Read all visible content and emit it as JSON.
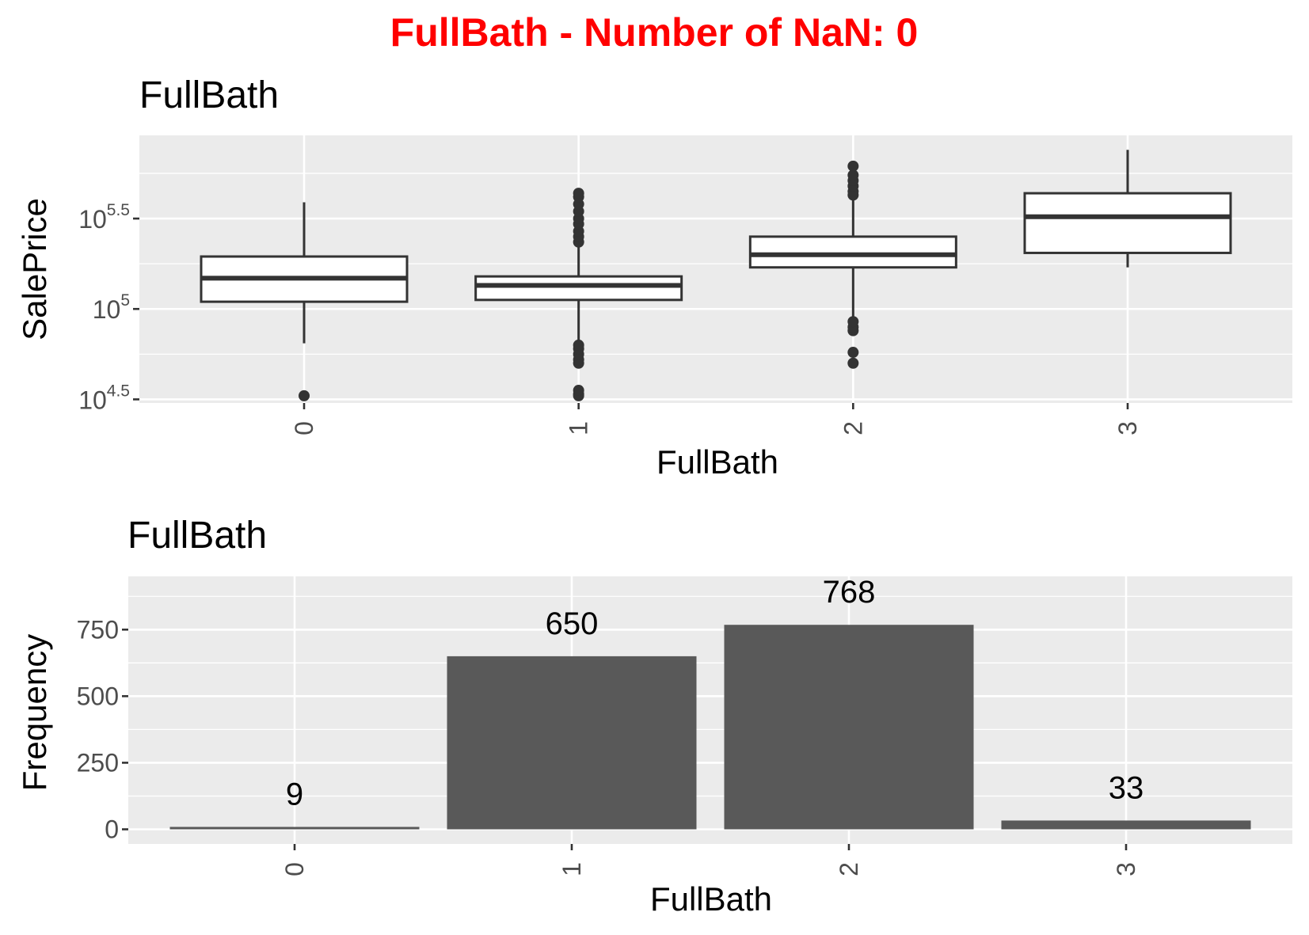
{
  "main_title": "FullBath - Number of NaN: 0",
  "colors": {
    "main_title": "#ff0000",
    "panel_background": "#ebebeb",
    "grid": "#ffffff",
    "box_outline": "#333333",
    "box_fill": "#ffffff",
    "bar_fill": "#595959",
    "tick_text": "#4d4d4d"
  },
  "chart_data": [
    {
      "type": "box",
      "title": "FullBath",
      "xlabel": "FullBath",
      "ylabel": "SalePrice",
      "y_scale": "log10",
      "ylim_log10": [
        4.48,
        5.96
      ],
      "y_ticks": [
        {
          "base": "10",
          "exp": "4.5",
          "log10": 4.5
        },
        {
          "base": "10",
          "exp": "",
          "label": "10",
          "sup": "5",
          "log10": 5.0
        },
        {
          "base": "10",
          "exp": "5.5",
          "log10": 5.5
        }
      ],
      "categories": [
        "0",
        "1",
        "2",
        "3"
      ],
      "boxes": [
        {
          "category": "0",
          "whisker_low": 4.81,
          "q1": 5.04,
          "median": 5.17,
          "q3": 5.29,
          "whisker_high": 5.59,
          "outliers": [
            4.52
          ]
        },
        {
          "category": "1",
          "whisker_low": 4.81,
          "q1": 5.05,
          "median": 5.13,
          "q3": 5.18,
          "whisker_high": 5.43,
          "outliers": [
            4.52,
            4.53,
            4.55,
            4.7,
            4.72,
            4.75,
            4.78,
            4.8,
            5.37,
            5.4,
            5.43,
            5.47,
            5.5,
            5.54,
            5.58,
            5.62,
            5.64
          ]
        },
        {
          "category": "2",
          "whisker_low": 4.91,
          "q1": 5.23,
          "median": 5.3,
          "q3": 5.4,
          "whisker_high": 5.61,
          "outliers": [
            4.7,
            4.76,
            4.88,
            4.9,
            4.93,
            5.63,
            5.65,
            5.68,
            5.71,
            5.74,
            5.79
          ]
        },
        {
          "category": "3",
          "whisker_low": 5.23,
          "q1": 5.31,
          "median": 5.51,
          "q3": 5.64,
          "whisker_high": 5.88,
          "outliers": []
        }
      ]
    },
    {
      "type": "bar",
      "title": "FullBath",
      "xlabel": "FullBath",
      "ylabel": "Frequency",
      "categories": [
        "0",
        "1",
        "2",
        "3"
      ],
      "values": [
        9,
        650,
        768,
        33
      ],
      "data_labels": [
        "9",
        "650",
        "768",
        "33"
      ],
      "ylim": [
        -55,
        950
      ],
      "y_ticks": [
        "0",
        "250",
        "500",
        "750"
      ]
    }
  ]
}
